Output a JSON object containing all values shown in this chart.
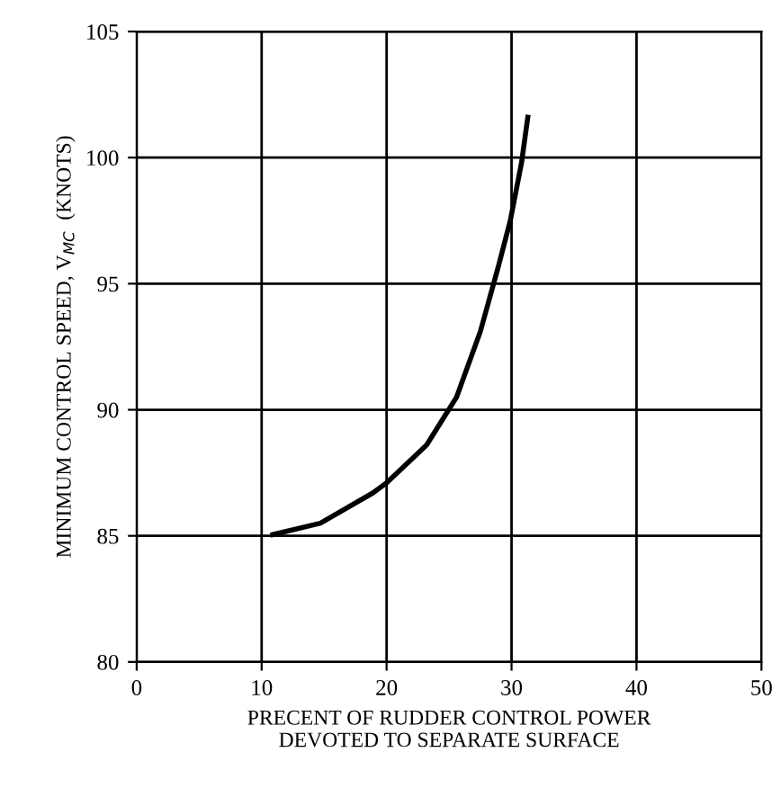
{
  "chart_data": {
    "type": "line",
    "xlabel": "PRECENT OF RUDDER CONTROL POWER\nDEVOTED TO SEPARATE SURFACE",
    "ylabel": "MINIMUM CONTROL SPEED, V$_{MC}$  (KNOTS)",
    "x": [
      10.9,
      14.7,
      18.9,
      20,
      23.2,
      25.6,
      27.5,
      28.9,
      29.9,
      30.8,
      31.3
    ],
    "series": [
      {
        "color": "#000000",
        "values": [
          85.05,
          85.5,
          86.7,
          87.1,
          88.6,
          90.5,
          93.1,
          95.6,
          97.5,
          99.8,
          101.6
        ]
      }
    ],
    "xlim": [
      0,
      50
    ],
    "xticks": [
      0,
      10,
      20,
      30,
      40,
      50
    ],
    "ylim": [
      80,
      105
    ],
    "yticks": [
      80,
      85,
      90,
      95,
      100,
      105
    ],
    "grid": true,
    "line_style": "solid"
  }
}
